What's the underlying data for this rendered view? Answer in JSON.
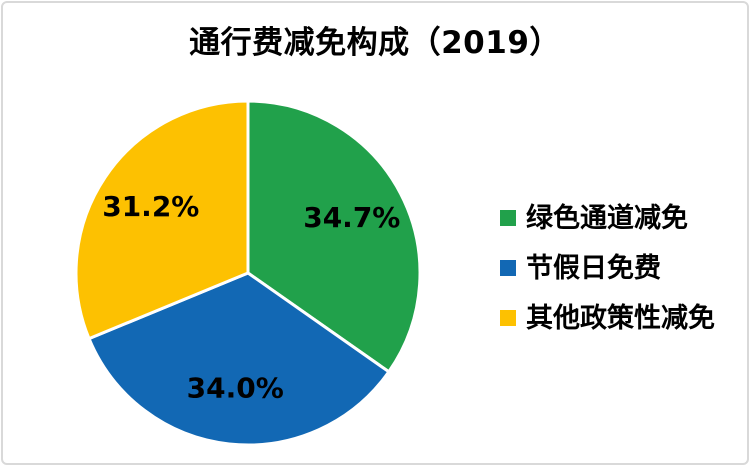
{
  "chart_data": {
    "type": "pie",
    "title": "通行费减免构成（2019）",
    "legend_position": "right",
    "start_angle_deg": 0,
    "direction": "clockwise",
    "slices": [
      {
        "label": "绿色通道减免",
        "value": 34.7,
        "display_value": "34.7%",
        "color": "#21A14B"
      },
      {
        "label": "节假日免费",
        "value": 34.0,
        "display_value": "34.0%",
        "color": "#1268B4"
      },
      {
        "label": "其他政策性减免",
        "value": 31.2,
        "display_value": "31.2%",
        "color": "#FDC101"
      }
    ]
  },
  "colors": {
    "background": "#FFFFFF",
    "panel_border": "#D9D9D9",
    "slice_separator": "#FFFFFF",
    "label_text": "#000000"
  }
}
